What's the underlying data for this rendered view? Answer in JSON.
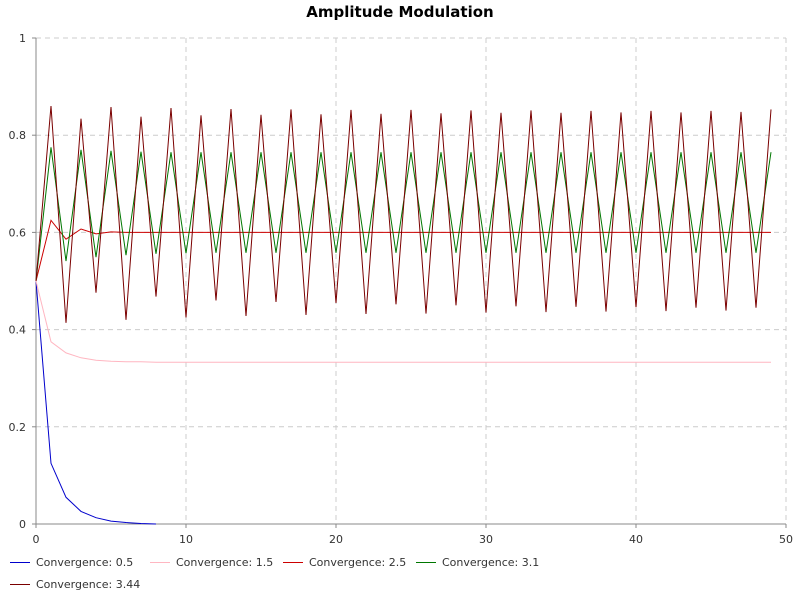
{
  "chart_data": {
    "type": "line",
    "title": "Amplitude Modulation",
    "xlabel": "",
    "ylabel": "",
    "xlim": [
      0,
      50
    ],
    "ylim": [
      0,
      1
    ],
    "x_ticks": [
      "0",
      "10",
      "20",
      "30",
      "40",
      "50"
    ],
    "y_ticks": [
      "0",
      "0.2",
      "0.4",
      "0.6",
      "0.8",
      "1"
    ],
    "grid": true,
    "legend_position": "bottom",
    "series": [
      {
        "name": "Convergence: 0.5",
        "color": "#0000cc",
        "x": [
          0,
          1,
          2,
          3,
          4,
          5,
          6,
          7,
          8
        ],
        "values": [
          0.5,
          0.125,
          0.055,
          0.026,
          0.013,
          0.006,
          0.003,
          0.001,
          0.0
        ]
      },
      {
        "name": "Convergence: 1.5",
        "color": "#ffb6c1",
        "x": [
          0,
          1,
          2,
          3,
          4,
          5,
          6,
          7,
          8,
          9,
          10,
          15,
          20,
          25,
          30,
          35,
          40,
          45,
          49
        ],
        "values": [
          0.5,
          0.375,
          0.352,
          0.342,
          0.337,
          0.335,
          0.334,
          0.334,
          0.333,
          0.333,
          0.333,
          0.333,
          0.333,
          0.333,
          0.333,
          0.333,
          0.333,
          0.333,
          0.333
        ]
      },
      {
        "name": "Convergence: 2.5",
        "color": "#cc0000",
        "x": [
          0,
          1,
          2,
          3,
          4,
          5,
          6,
          7,
          8,
          9,
          10,
          12,
          14,
          16,
          18,
          20,
          25,
          30,
          35,
          40,
          45,
          49
        ],
        "values": [
          0.5,
          0.625,
          0.586,
          0.607,
          0.597,
          0.601,
          0.6,
          0.6,
          0.6,
          0.6,
          0.6,
          0.6,
          0.6,
          0.6,
          0.6,
          0.6,
          0.6,
          0.6,
          0.6,
          0.6,
          0.6,
          0.6
        ]
      },
      {
        "name": "Convergence: 3.1",
        "color": "#007700",
        "x": [
          0,
          1,
          2,
          3,
          4,
          5,
          6,
          7,
          8,
          9,
          10,
          11,
          12,
          13,
          14,
          15,
          16,
          17,
          18,
          19,
          20,
          21,
          22,
          23,
          24,
          25,
          26,
          27,
          28,
          29,
          30,
          31,
          32,
          33,
          34,
          35,
          36,
          37,
          38,
          39,
          40,
          41,
          42,
          43,
          44,
          45,
          46,
          47,
          48,
          49
        ],
        "values": [
          0.5,
          0.775,
          0.541,
          0.77,
          0.549,
          0.768,
          0.553,
          0.766,
          0.556,
          0.765,
          0.557,
          0.765,
          0.558,
          0.765,
          0.558,
          0.765,
          0.558,
          0.765,
          0.558,
          0.765,
          0.558,
          0.765,
          0.558,
          0.765,
          0.558,
          0.765,
          0.558,
          0.765,
          0.558,
          0.765,
          0.558,
          0.765,
          0.558,
          0.765,
          0.558,
          0.765,
          0.558,
          0.765,
          0.558,
          0.765,
          0.558,
          0.765,
          0.558,
          0.765,
          0.558,
          0.765,
          0.558,
          0.765,
          0.558,
          0.765
        ]
      },
      {
        "name": "Convergence: 3.44",
        "color": "#7a0000",
        "x": [
          0,
          1,
          2,
          3,
          4,
          5,
          6,
          7,
          8,
          9,
          10,
          11,
          12,
          13,
          14,
          15,
          16,
          17,
          18,
          19,
          20,
          21,
          22,
          23,
          24,
          25,
          26,
          27,
          28,
          29,
          30,
          31,
          32,
          33,
          34,
          35,
          36,
          37,
          38,
          39,
          40,
          41,
          42,
          43,
          44,
          45,
          46,
          47,
          48,
          49
        ],
        "values": [
          0.5,
          0.86,
          0.414,
          0.834,
          0.476,
          0.858,
          0.42,
          0.838,
          0.468,
          0.856,
          0.425,
          0.841,
          0.46,
          0.854,
          0.428,
          0.842,
          0.457,
          0.853,
          0.43,
          0.843,
          0.455,
          0.852,
          0.432,
          0.844,
          0.452,
          0.852,
          0.433,
          0.845,
          0.45,
          0.851,
          0.435,
          0.846,
          0.448,
          0.851,
          0.436,
          0.846,
          0.447,
          0.85,
          0.437,
          0.847,
          0.446,
          0.85,
          0.438,
          0.847,
          0.445,
          0.85,
          0.439,
          0.848,
          0.445,
          0.853
        ]
      }
    ]
  }
}
